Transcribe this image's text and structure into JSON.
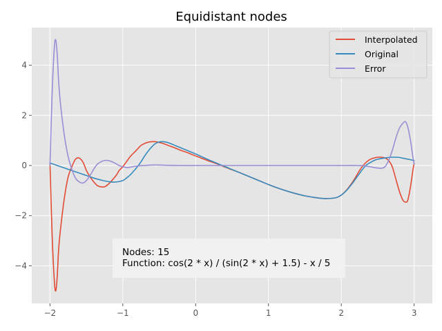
{
  "chart_data": {
    "type": "line",
    "title": "Equidistant nodes",
    "xlabel": "",
    "ylabel": "",
    "xlim": [
      -2.25,
      3.25
    ],
    "ylim": [
      -5.5,
      5.5
    ],
    "xticks": [
      -2,
      -1,
      0,
      1,
      2,
      3
    ],
    "xtick_labels": [
      "−2",
      "−1",
      "0",
      "1",
      "2",
      "3"
    ],
    "yticks": [
      -4,
      -2,
      0,
      2,
      4
    ],
    "ytick_labels": [
      "−4",
      "−2",
      "0",
      "2",
      "4"
    ],
    "grid": true,
    "legend_position": "top-right",
    "series": [
      {
        "name": "Interpolated",
        "color": "#E24A33",
        "x": [
          -2.0,
          -1.97,
          -1.94,
          -1.92,
          -1.9,
          -1.88,
          -1.85,
          -1.8,
          -1.75,
          -1.7,
          -1.65,
          -1.6,
          -1.55,
          -1.52,
          -1.5,
          -1.45,
          -1.4,
          -1.35,
          -1.3,
          -1.25,
          -1.2,
          -1.15,
          -1.12,
          -1.08,
          -1.05,
          -1.0,
          -0.95,
          -0.9,
          -0.85,
          -0.8,
          -0.75,
          -0.7,
          -0.65,
          -0.6,
          -0.55,
          -0.5,
          -0.45,
          -0.4,
          -0.35,
          -0.3,
          -0.2,
          -0.1,
          0.0,
          0.1,
          0.2,
          0.3,
          0.4,
          0.5,
          0.6,
          0.7,
          0.8,
          0.9,
          1.0,
          1.1,
          1.2,
          1.3,
          1.4,
          1.5,
          1.6,
          1.7,
          1.8,
          1.9,
          1.95,
          2.0,
          2.05,
          2.1,
          2.15,
          2.2,
          2.25,
          2.3,
          2.35,
          2.4,
          2.45,
          2.5,
          2.55,
          2.6,
          2.65,
          2.7,
          2.75,
          2.8,
          2.85,
          2.9,
          2.92,
          2.95,
          2.98,
          3.0
        ],
        "values": [
          0.1,
          -2.8,
          -4.6,
          -5.0,
          -4.4,
          -3.3,
          -2.4,
          -1.25,
          -0.45,
          -0.05,
          0.25,
          0.3,
          0.15,
          -0.05,
          -0.2,
          -0.45,
          -0.65,
          -0.8,
          -0.85,
          -0.85,
          -0.75,
          -0.6,
          -0.5,
          -0.35,
          -0.2,
          -0.05,
          0.15,
          0.35,
          0.5,
          0.65,
          0.8,
          0.88,
          0.93,
          0.95,
          0.95,
          0.92,
          0.88,
          0.83,
          0.77,
          0.72,
          0.6,
          0.5,
          0.38,
          0.27,
          0.16,
          0.06,
          -0.06,
          -0.17,
          -0.28,
          -0.4,
          -0.52,
          -0.64,
          -0.76,
          -0.87,
          -0.97,
          -1.06,
          -1.14,
          -1.21,
          -1.26,
          -1.3,
          -1.32,
          -1.3,
          -1.26,
          -1.18,
          -1.05,
          -0.88,
          -0.68,
          -0.45,
          -0.2,
          0.0,
          0.15,
          0.25,
          0.3,
          0.33,
          0.33,
          0.3,
          0.2,
          -0.05,
          -0.55,
          -1.05,
          -1.4,
          -1.45,
          -1.3,
          -0.85,
          -0.25,
          0.1
        ]
      },
      {
        "name": "Original",
        "color": "#348ABD",
        "x": [
          -2.0,
          -1.9,
          -1.8,
          -1.7,
          -1.6,
          -1.5,
          -1.4,
          -1.3,
          -1.2,
          -1.1,
          -1.0,
          -0.95,
          -0.9,
          -0.85,
          -0.8,
          -0.75,
          -0.7,
          -0.65,
          -0.6,
          -0.55,
          -0.5,
          -0.45,
          -0.4,
          -0.35,
          -0.3,
          -0.2,
          -0.1,
          0.0,
          0.1,
          0.2,
          0.3,
          0.4,
          0.5,
          0.6,
          0.7,
          0.8,
          0.9,
          1.0,
          1.1,
          1.2,
          1.3,
          1.4,
          1.5,
          1.6,
          1.7,
          1.8,
          1.9,
          1.95,
          2.0,
          2.05,
          2.1,
          2.15,
          2.2,
          2.25,
          2.3,
          2.35,
          2.4,
          2.45,
          2.5,
          2.55,
          2.6,
          2.65,
          2.7,
          2.75,
          2.8,
          2.85,
          2.9,
          2.95,
          3.0
        ],
        "values": [
          0.1,
          0.0,
          -0.1,
          -0.2,
          -0.3,
          -0.4,
          -0.5,
          -0.58,
          -0.64,
          -0.66,
          -0.6,
          -0.5,
          -0.38,
          -0.22,
          -0.05,
          0.15,
          0.38,
          0.58,
          0.75,
          0.88,
          0.94,
          0.95,
          0.93,
          0.88,
          0.82,
          0.7,
          0.58,
          0.46,
          0.33,
          0.2,
          0.08,
          -0.04,
          -0.16,
          -0.28,
          -0.4,
          -0.52,
          -0.64,
          -0.76,
          -0.87,
          -0.97,
          -1.06,
          -1.14,
          -1.21,
          -1.26,
          -1.3,
          -1.32,
          -1.3,
          -1.26,
          -1.18,
          -1.06,
          -0.9,
          -0.72,
          -0.52,
          -0.32,
          -0.12,
          0.03,
          0.12,
          0.2,
          0.25,
          0.28,
          0.3,
          0.32,
          0.33,
          0.33,
          0.32,
          0.29,
          0.26,
          0.23,
          0.2
        ]
      },
      {
        "name": "Error",
        "color": "#988ED5",
        "x": [
          -2.0,
          -1.97,
          -1.94,
          -1.92,
          -1.9,
          -1.88,
          -1.85,
          -1.8,
          -1.75,
          -1.7,
          -1.65,
          -1.6,
          -1.55,
          -1.5,
          -1.45,
          -1.4,
          -1.35,
          -1.3,
          -1.25,
          -1.2,
          -1.15,
          -1.1,
          -1.05,
          -1.0,
          -0.95,
          -0.9,
          -0.85,
          -0.8,
          -0.7,
          -0.6,
          -0.5,
          -0.4,
          -0.2,
          0.0,
          0.5,
          1.0,
          1.5,
          2.0,
          2.2,
          2.3,
          2.35,
          2.4,
          2.45,
          2.5,
          2.55,
          2.6,
          2.65,
          2.7,
          2.75,
          2.8,
          2.85,
          2.88,
          2.9,
          2.92,
          2.95,
          2.98,
          3.0
        ],
        "values": [
          0.0,
          2.9,
          4.7,
          5.0,
          4.4,
          3.3,
          2.3,
          1.15,
          0.35,
          -0.15,
          -0.5,
          -0.65,
          -0.7,
          -0.6,
          -0.4,
          -0.15,
          0.05,
          0.15,
          0.2,
          0.2,
          0.15,
          0.08,
          0.0,
          -0.05,
          -0.08,
          -0.07,
          -0.04,
          -0.02,
          0.0,
          0.02,
          0.02,
          0.01,
          0.0,
          0.0,
          0.0,
          0.0,
          0.0,
          0.0,
          0.0,
          -0.01,
          -0.03,
          -0.05,
          -0.08,
          -0.1,
          -0.11,
          -0.05,
          0.2,
          0.6,
          1.1,
          1.5,
          1.7,
          1.75,
          1.65,
          1.45,
          1.0,
          0.4,
          0.05
        ]
      }
    ],
    "annotation": {
      "line1": "Nodes: 15",
      "line2": "Function: cos(2 * x) / (sin(2 * x) + 1.5) - x / 5"
    },
    "style": {
      "axes_facecolor": "#E5E5E5",
      "grid_color": "#FFFFFF"
    }
  }
}
